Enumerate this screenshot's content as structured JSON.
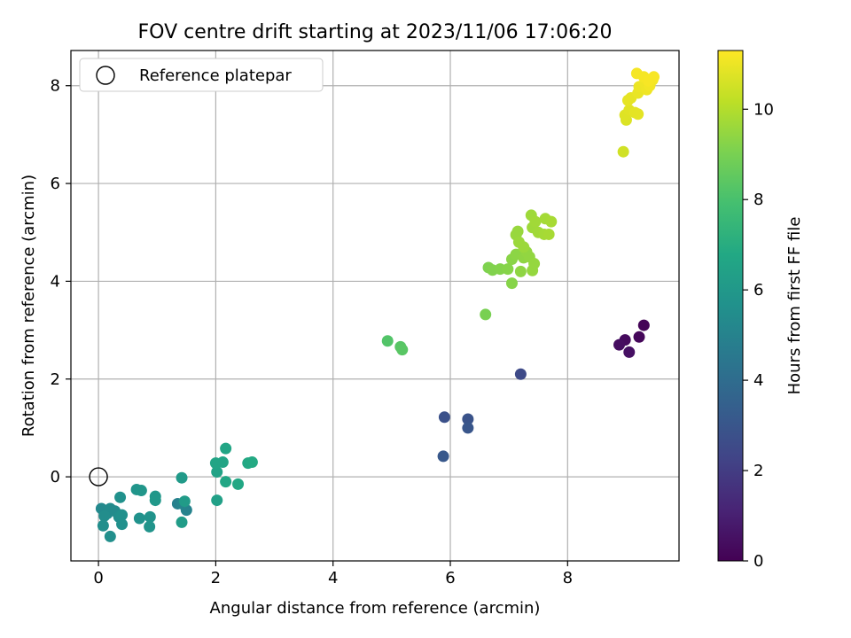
{
  "chart_data": {
    "type": "scatter",
    "title": "FOV centre drift starting at 2023/11/06 17:06:20",
    "xlabel": "Angular distance from reference (arcmin)",
    "ylabel": "Rotation from reference (arcmin)",
    "xlim": [
      -0.47,
      9.9
    ],
    "ylim": [
      -1.72,
      8.72
    ],
    "xticks": [
      0,
      2,
      4,
      6,
      8
    ],
    "yticks": [
      0,
      2,
      4,
      6,
      8
    ],
    "grid": true,
    "legend": {
      "placement": "top-left",
      "entries": [
        "Reference platepar"
      ]
    },
    "reference_point": {
      "x": 0,
      "y": 0,
      "label": "Reference platepar"
    },
    "colorbar": {
      "label": "Hours from first FF file",
      "colormap": "viridis",
      "range": [
        0,
        11.3
      ],
      "ticks": [
        0,
        2,
        4,
        6,
        8,
        10
      ]
    },
    "points": [
      {
        "x": 9.3,
        "y": 3.1,
        "h": 0.1
      },
      {
        "x": 9.22,
        "y": 2.86,
        "h": 0.2
      },
      {
        "x": 8.98,
        "y": 2.8,
        "h": 0.3
      },
      {
        "x": 8.88,
        "y": 2.7,
        "h": 0.4
      },
      {
        "x": 9.05,
        "y": 2.55,
        "h": 0.5
      },
      {
        "x": 7.2,
        "y": 2.1,
        "h": 2.5
      },
      {
        "x": 5.9,
        "y": 1.22,
        "h": 2.8
      },
      {
        "x": 6.3,
        "y": 1.18,
        "h": 2.9
      },
      {
        "x": 6.3,
        "y": 1.0,
        "h": 3.0
      },
      {
        "x": 5.88,
        "y": 0.42,
        "h": 3.1
      },
      {
        "x": 1.35,
        "y": -0.55,
        "h": 4.9
      },
      {
        "x": 1.5,
        "y": -0.68,
        "h": 5.0
      },
      {
        "x": 1.42,
        "y": -0.55,
        "h": 5.05
      },
      {
        "x": 0.05,
        "y": -0.65,
        "h": 5.3
      },
      {
        "x": 0.1,
        "y": -0.7,
        "h": 5.3
      },
      {
        "x": 0.15,
        "y": -0.75,
        "h": 5.35
      },
      {
        "x": 0.2,
        "y": -0.65,
        "h": 5.4
      },
      {
        "x": 0.28,
        "y": -0.7,
        "h": 5.4
      },
      {
        "x": 0.1,
        "y": -0.8,
        "h": 5.45
      },
      {
        "x": 0.35,
        "y": -0.82,
        "h": 5.5
      },
      {
        "x": 0.08,
        "y": -1.0,
        "h": 5.5
      },
      {
        "x": 0.2,
        "y": -1.22,
        "h": 5.55
      },
      {
        "x": 0.4,
        "y": -0.78,
        "h": 5.6
      },
      {
        "x": 0.4,
        "y": -0.97,
        "h": 5.6
      },
      {
        "x": 0.37,
        "y": -0.42,
        "h": 5.65
      },
      {
        "x": 0.7,
        "y": -0.85,
        "h": 5.7
      },
      {
        "x": 0.88,
        "y": -0.82,
        "h": 5.75
      },
      {
        "x": 0.87,
        "y": -1.02,
        "h": 5.8
      },
      {
        "x": 0.65,
        "y": -0.26,
        "h": 5.85
      },
      {
        "x": 0.73,
        "y": -0.28,
        "h": 5.9
      },
      {
        "x": 0.97,
        "y": -0.4,
        "h": 5.95
      },
      {
        "x": 0.97,
        "y": -0.48,
        "h": 6.0
      },
      {
        "x": 1.42,
        "y": -0.02,
        "h": 6.1
      },
      {
        "x": 1.47,
        "y": -0.5,
        "h": 6.15
      },
      {
        "x": 1.42,
        "y": -0.93,
        "h": 6.2
      },
      {
        "x": 2.02,
        "y": -0.48,
        "h": 6.4
      },
      {
        "x": 2.02,
        "y": 0.1,
        "h": 6.5
      },
      {
        "x": 2.0,
        "y": 0.28,
        "h": 6.6
      },
      {
        "x": 2.12,
        "y": 0.3,
        "h": 6.6
      },
      {
        "x": 2.17,
        "y": 0.58,
        "h": 6.65
      },
      {
        "x": 2.17,
        "y": -0.1,
        "h": 6.7
      },
      {
        "x": 2.38,
        "y": -0.15,
        "h": 6.75
      },
      {
        "x": 2.55,
        "y": 0.28,
        "h": 6.8
      },
      {
        "x": 2.62,
        "y": 0.3,
        "h": 6.85
      },
      {
        "x": 4.93,
        "y": 2.78,
        "h": 8.2
      },
      {
        "x": 5.15,
        "y": 2.66,
        "h": 8.3
      },
      {
        "x": 5.18,
        "y": 2.6,
        "h": 8.35
      },
      {
        "x": 6.6,
        "y": 3.32,
        "h": 9.0
      },
      {
        "x": 6.65,
        "y": 4.28,
        "h": 9.1
      },
      {
        "x": 6.72,
        "y": 4.23,
        "h": 9.15
      },
      {
        "x": 6.85,
        "y": 4.25,
        "h": 9.2
      },
      {
        "x": 6.98,
        "y": 4.25,
        "h": 9.25
      },
      {
        "x": 7.05,
        "y": 3.96,
        "h": 9.25
      },
      {
        "x": 7.05,
        "y": 4.45,
        "h": 9.3
      },
      {
        "x": 7.12,
        "y": 4.55,
        "h": 9.35
      },
      {
        "x": 7.2,
        "y": 4.2,
        "h": 9.4
      },
      {
        "x": 7.25,
        "y": 4.48,
        "h": 9.4
      },
      {
        "x": 7.3,
        "y": 4.6,
        "h": 9.45
      },
      {
        "x": 7.35,
        "y": 4.5,
        "h": 9.45
      },
      {
        "x": 7.4,
        "y": 4.22,
        "h": 9.5
      },
      {
        "x": 7.43,
        "y": 4.36,
        "h": 9.5
      },
      {
        "x": 7.12,
        "y": 4.95,
        "h": 9.55
      },
      {
        "x": 7.15,
        "y": 5.02,
        "h": 9.55
      },
      {
        "x": 7.17,
        "y": 4.8,
        "h": 9.6
      },
      {
        "x": 7.25,
        "y": 4.7,
        "h": 9.6
      },
      {
        "x": 7.38,
        "y": 5.35,
        "h": 9.65
      },
      {
        "x": 7.4,
        "y": 5.1,
        "h": 9.65
      },
      {
        "x": 7.45,
        "y": 5.22,
        "h": 9.7
      },
      {
        "x": 7.5,
        "y": 5.0,
        "h": 9.7
      },
      {
        "x": 7.6,
        "y": 4.96,
        "h": 9.75
      },
      {
        "x": 7.62,
        "y": 5.28,
        "h": 9.75
      },
      {
        "x": 7.68,
        "y": 4.96,
        "h": 9.8
      },
      {
        "x": 7.72,
        "y": 5.22,
        "h": 9.8
      },
      {
        "x": 8.95,
        "y": 6.65,
        "h": 10.5
      },
      {
        "x": 9.0,
        "y": 7.3,
        "h": 10.7
      },
      {
        "x": 8.98,
        "y": 7.4,
        "h": 10.75
      },
      {
        "x": 9.05,
        "y": 7.5,
        "h": 10.8
      },
      {
        "x": 9.15,
        "y": 7.45,
        "h": 10.85
      },
      {
        "x": 9.2,
        "y": 7.42,
        "h": 10.85
      },
      {
        "x": 9.03,
        "y": 7.7,
        "h": 10.9
      },
      {
        "x": 9.08,
        "y": 7.75,
        "h": 10.9
      },
      {
        "x": 9.2,
        "y": 7.85,
        "h": 10.95
      },
      {
        "x": 9.22,
        "y": 7.98,
        "h": 11.0
      },
      {
        "x": 9.28,
        "y": 8.0,
        "h": 11.0
      },
      {
        "x": 9.32,
        "y": 8.05,
        "h": 11.05
      },
      {
        "x": 9.35,
        "y": 7.92,
        "h": 11.05
      },
      {
        "x": 9.4,
        "y": 8.0,
        "h": 11.1
      },
      {
        "x": 9.45,
        "y": 8.12,
        "h": 11.1
      },
      {
        "x": 9.18,
        "y": 8.25,
        "h": 11.15
      },
      {
        "x": 9.3,
        "y": 8.18,
        "h": 11.15
      },
      {
        "x": 9.38,
        "y": 8.1,
        "h": 11.2
      },
      {
        "x": 9.47,
        "y": 8.18,
        "h": 11.2
      }
    ]
  }
}
